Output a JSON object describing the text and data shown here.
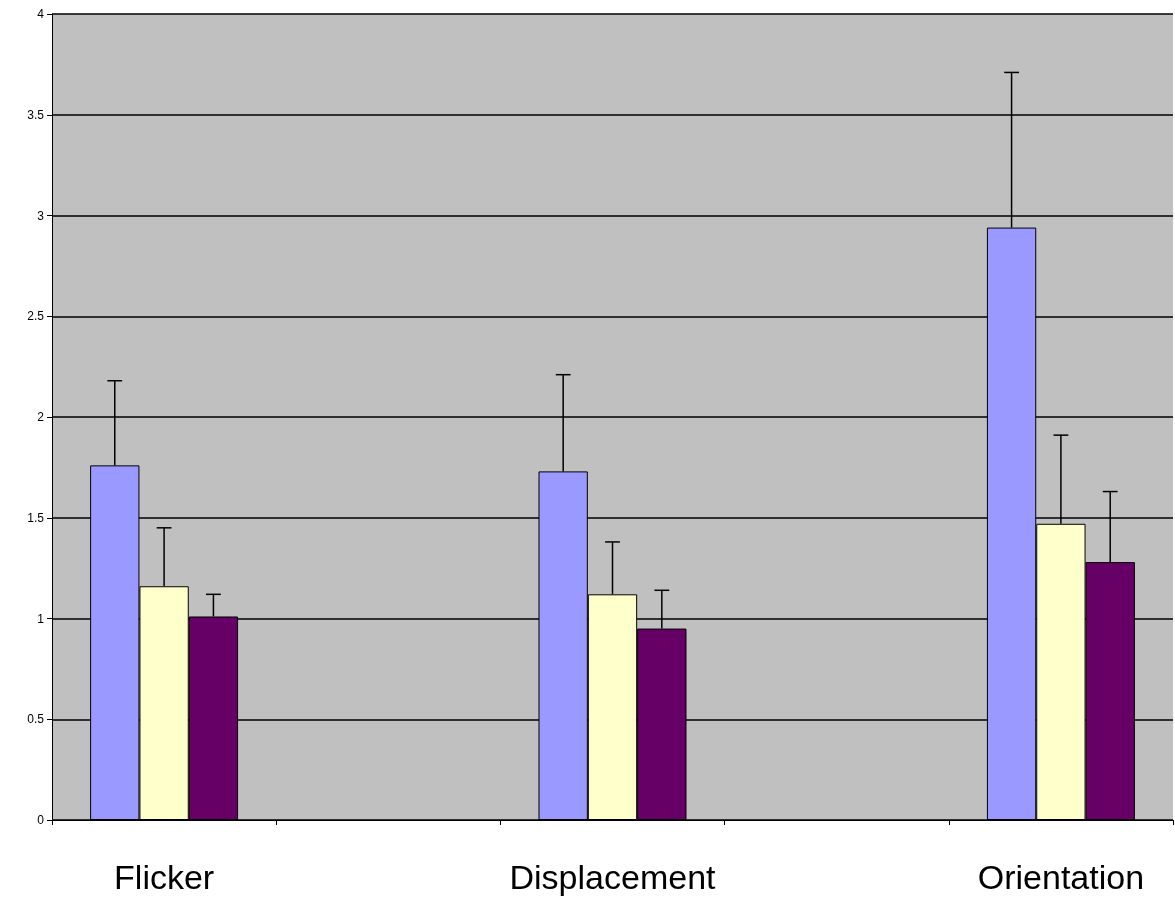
{
  "chart_data": {
    "type": "bar",
    "categories": [
      "Flicker",
      null,
      "Displacement",
      null,
      "Orientation"
    ],
    "series": [
      {
        "color": "#9999ff",
        "values": [
          1.76,
          null,
          1.73,
          null,
          2.94
        ],
        "errors": [
          [
            1.76,
            2.18
          ],
          null,
          [
            1.73,
            2.21
          ],
          null,
          [
            2.94,
            3.71
          ]
        ]
      },
      {
        "color": "#ffffcc",
        "values": [
          1.16,
          null,
          1.12,
          null,
          1.47
        ],
        "errors": [
          [
            1.16,
            1.45
          ],
          null,
          [
            1.12,
            1.38
          ],
          null,
          [
            1.47,
            1.91
          ]
        ]
      },
      {
        "color": "#660066",
        "values": [
          1.01,
          null,
          0.95,
          null,
          1.28
        ],
        "errors": [
          [
            1.01,
            1.12
          ],
          null,
          [
            0.95,
            1.14
          ],
          null,
          [
            1.28,
            1.63
          ]
        ]
      }
    ],
    "ylim": [
      0,
      4
    ],
    "yticks": [
      0,
      0.5,
      1,
      1.5,
      2,
      2.5,
      3,
      3.5,
      4
    ],
    "grid": "y"
  }
}
